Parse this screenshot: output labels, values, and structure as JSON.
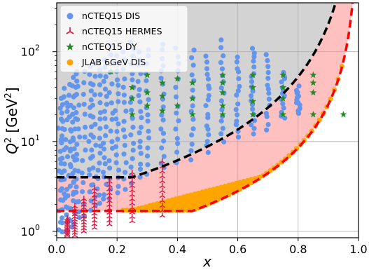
{
  "chart_data": {
    "type": "scatter",
    "xlabel": "x",
    "ylabel_main": "Q",
    "ylabel_sup": "2",
    "ylabel_unit_open": "[GeV",
    "ylabel_unit_sup": "2",
    "ylabel_unit_close": "]",
    "xlim": [
      0.0,
      1.0
    ],
    "ylim": [
      0.85,
      350
    ],
    "yscale": "log",
    "grid": true,
    "legend_position": "top-left",
    "x_ticks": [
      {
        "value": 0.0,
        "label": "0.0"
      },
      {
        "value": 0.2,
        "label": "0.2"
      },
      {
        "value": 0.4,
        "label": "0.4"
      },
      {
        "value": 0.6,
        "label": "0.6"
      },
      {
        "value": 0.8,
        "label": "0.8"
      },
      {
        "value": 1.0,
        "label": "1.0"
      }
    ],
    "y_ticks": [
      {
        "value": 1,
        "base": "10",
        "exp": "0"
      },
      {
        "value": 10,
        "base": "10",
        "exp": "1"
      },
      {
        "value": 100,
        "base": "10",
        "exp": "2"
      }
    ],
    "colors": {
      "dis": "#6495ed",
      "hermes": "#dc143c",
      "dy": "#228b22",
      "jlab": "#ffa500",
      "gray_region": "#d3d3d3",
      "pink_band": "#ffc0c0",
      "upper_cut": "#000000",
      "lower_cut": "#ff0000"
    },
    "series": [
      {
        "name": "nCTEQ15 DIS",
        "marker": "circle",
        "color": "#6495ed"
      },
      {
        "name": "nCTEQ15 HERMES",
        "marker": "tri",
        "color": "#dc143c"
      },
      {
        "name": "nCTEQ15 DY",
        "marker": "star",
        "color": "#228b22"
      },
      {
        "name": "JLAB 6GeV DIS",
        "marker": "circle",
        "color": "#ffa500"
      }
    ],
    "dis_columns": [
      {
        "x": 0.01,
        "ymin": 1.0,
        "ymax": 30
      },
      {
        "x": 0.02,
        "ymin": 1.0,
        "ymax": 30
      },
      {
        "x": 0.03,
        "ymin": 1.0,
        "ymax": 40
      },
      {
        "x": 0.04,
        "ymin": 1.0,
        "ymax": 45
      },
      {
        "x": 0.05,
        "ymin": 1.1,
        "ymax": 50
      },
      {
        "x": 0.06,
        "ymin": 1.2,
        "ymax": 55
      },
      {
        "x": 0.07,
        "ymin": 1.4,
        "ymax": 60
      },
      {
        "x": 0.09,
        "ymin": 1.5,
        "ymax": 60
      },
      {
        "x": 0.11,
        "ymin": 1.7,
        "ymax": 70
      },
      {
        "x": 0.125,
        "ymin": 1.9,
        "ymax": 70
      },
      {
        "x": 0.14,
        "ymin": 2.0,
        "ymax": 80
      },
      {
        "x": 0.16,
        "ymin": 2.2,
        "ymax": 80
      },
      {
        "x": 0.18,
        "ymin": 2.4,
        "ymax": 120
      },
      {
        "x": 0.2,
        "ymin": 2.6,
        "ymax": 90
      },
      {
        "x": 0.225,
        "ymin": 3.0,
        "ymax": 100
      },
      {
        "x": 0.25,
        "ymin": 3.5,
        "ymax": 130
      },
      {
        "x": 0.275,
        "ymin": 4.0,
        "ymax": 100
      },
      {
        "x": 0.3,
        "ymin": 4.5,
        "ymax": 110
      },
      {
        "x": 0.35,
        "ymin": 5.0,
        "ymax": 120
      },
      {
        "x": 0.4,
        "ymin": 6.0,
        "ymax": 110
      },
      {
        "x": 0.45,
        "ymin": 6.5,
        "ymax": 100
      },
      {
        "x": 0.5,
        "ymin": 7.5,
        "ymax": 90
      },
      {
        "x": 0.55,
        "ymin": 10,
        "ymax": 130
      },
      {
        "x": 0.6,
        "ymin": 11,
        "ymax": 90
      },
      {
        "x": 0.65,
        "ymin": 12,
        "ymax": 110
      },
      {
        "x": 0.7,
        "ymin": 14,
        "ymax": 90
      },
      {
        "x": 0.75,
        "ymin": 18,
        "ymax": 60
      },
      {
        "x": 0.8,
        "ymin": 20,
        "ymax": 40
      }
    ],
    "hermes_columns": [
      {
        "x": 0.035,
        "ymin": 0.9,
        "ymax": 1.4
      },
      {
        "x": 0.06,
        "ymin": 0.9,
        "ymax": 1.9
      },
      {
        "x": 0.09,
        "ymin": 1.0,
        "ymax": 2.3
      },
      {
        "x": 0.125,
        "ymin": 1.1,
        "ymax": 3.0
      },
      {
        "x": 0.175,
        "ymin": 1.2,
        "ymax": 3.6
      },
      {
        "x": 0.25,
        "ymin": 1.3,
        "ymax": 4.5
      },
      {
        "x": 0.35,
        "ymin": 1.5,
        "ymax": 6.0
      }
    ],
    "dy_points": [
      {
        "x": 0.18,
        "y": 60
      },
      {
        "x": 0.25,
        "y": 40
      },
      {
        "x": 0.25,
        "y": 30
      },
      {
        "x": 0.25,
        "y": 20
      },
      {
        "x": 0.3,
        "y": 55
      },
      {
        "x": 0.3,
        "y": 35
      },
      {
        "x": 0.3,
        "y": 25
      },
      {
        "x": 0.35,
        "y": 45
      },
      {
        "x": 0.35,
        "y": 32
      },
      {
        "x": 0.35,
        "y": 22
      },
      {
        "x": 0.4,
        "y": 50
      },
      {
        "x": 0.4,
        "y": 25
      },
      {
        "x": 0.45,
        "y": 45
      },
      {
        "x": 0.45,
        "y": 30
      },
      {
        "x": 0.45,
        "y": 20
      },
      {
        "x": 0.55,
        "y": 55
      },
      {
        "x": 0.55,
        "y": 45
      },
      {
        "x": 0.55,
        "y": 35
      },
      {
        "x": 0.55,
        "y": 25
      },
      {
        "x": 0.55,
        "y": 20
      },
      {
        "x": 0.65,
        "y": 55
      },
      {
        "x": 0.65,
        "y": 40
      },
      {
        "x": 0.65,
        "y": 28
      },
      {
        "x": 0.65,
        "y": 20
      },
      {
        "x": 0.75,
        "y": 55
      },
      {
        "x": 0.75,
        "y": 40
      },
      {
        "x": 0.75,
        "y": 30
      },
      {
        "x": 0.75,
        "y": 20
      },
      {
        "x": 0.85,
        "y": 55
      },
      {
        "x": 0.85,
        "y": 45
      },
      {
        "x": 0.85,
        "y": 35
      },
      {
        "x": 0.85,
        "y": 20
      },
      {
        "x": 0.95,
        "y": 20
      }
    ],
    "jlab_band": {
      "xmin": 0.22,
      "xmax": 0.95
    },
    "upper_cut_flat": 4.0,
    "upper_cut_knee": 0.25,
    "lower_cut_flat": 1.69,
    "lower_cut_knee": 0.45
  }
}
